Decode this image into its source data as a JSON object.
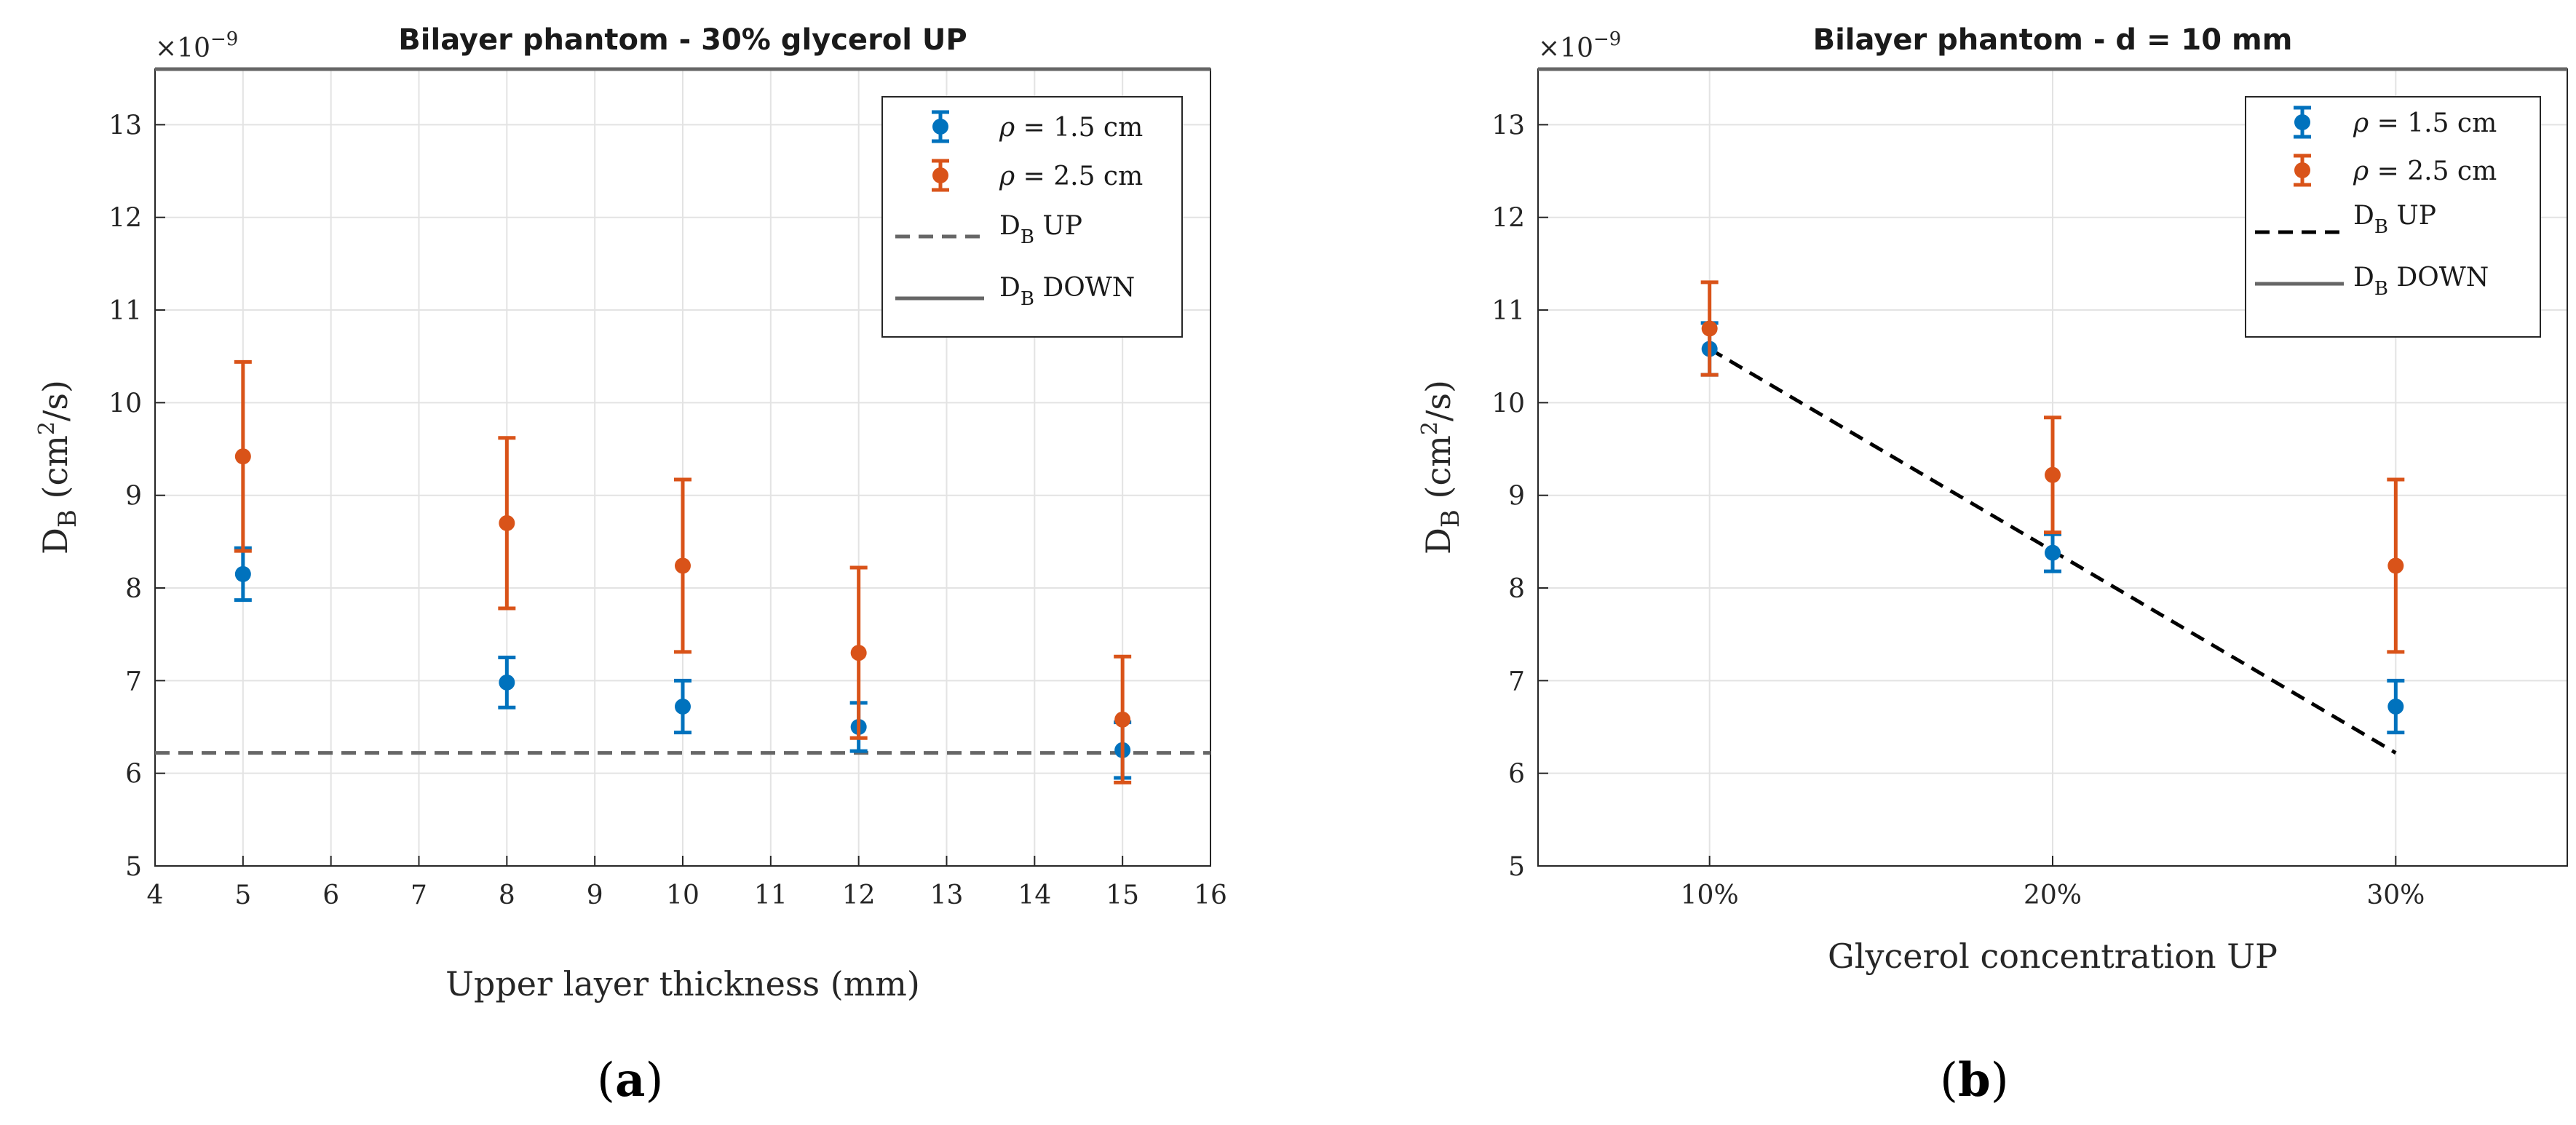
{
  "colors": {
    "series1": "#0072BD",
    "series2": "#D95319",
    "line": "#666666",
    "dashed_b": "#000000",
    "grid": "#e3e3e3",
    "axis": "#262626"
  },
  "chart_data": [
    {
      "type": "scatter",
      "panel_label": "a",
      "title": "Bilayer phantom - 30% glycerol UP",
      "exponent_label": "×10",
      "exponent_power": "−9",
      "xlabel": "Upper layer thickness (mm)",
      "ylabel_main": "D",
      "ylabel_sub": "B",
      "ylabel_rest1": " (cm",
      "ylabel_sup": "2",
      "ylabel_rest2": "/s)",
      "xlim": [
        4,
        16
      ],
      "ylim": [
        5,
        13.6
      ],
      "xticks": [
        4,
        5,
        6,
        7,
        8,
        9,
        10,
        11,
        12,
        13,
        14,
        15,
        16
      ],
      "yticks": [
        5,
        6,
        7,
        8,
        9,
        10,
        11,
        12,
        13
      ],
      "series": [
        {
          "name": "ρ = 1.5 cm",
          "x": [
            5,
            8,
            10,
            12,
            15
          ],
          "y": [
            8.15,
            6.98,
            6.72,
            6.5,
            6.25
          ],
          "err": [
            0.28,
            0.27,
            0.28,
            0.26,
            0.3
          ]
        },
        {
          "name": "ρ = 2.5 cm",
          "x": [
            5,
            8,
            10,
            12,
            15
          ],
          "y": [
            9.42,
            8.7,
            8.24,
            7.3,
            6.58
          ],
          "err": [
            1.02,
            0.92,
            0.93,
            0.92,
            0.68
          ]
        }
      ],
      "lines": [
        {
          "name": "D_B UP",
          "style": "dashed",
          "x": [
            4,
            16
          ],
          "y": [
            6.22,
            6.22
          ]
        },
        {
          "name": "D_B DOWN",
          "style": "solid",
          "x": [
            4,
            16
          ],
          "y": [
            13.6,
            13.6
          ]
        }
      ],
      "legend": [
        {
          "sym": "ρ",
          "rest": " = 1.5 cm"
        },
        {
          "sym": "ρ",
          "rest": " = 2.5 cm"
        },
        {
          "main": "D",
          "sub": "B",
          "rest": " UP"
        },
        {
          "main": "D",
          "sub": "B",
          "rest": " DOWN"
        }
      ]
    },
    {
      "type": "scatter",
      "panel_label": "b",
      "title": "Bilayer phantom - d = 10 mm",
      "exponent_label": "×10",
      "exponent_power": "−9",
      "xlabel": "Glycerol concentration UP",
      "ylabel_main": "D",
      "ylabel_sub": "B",
      "ylabel_rest1": " (cm",
      "ylabel_sup": "2",
      "ylabel_rest2": "/s)",
      "xlim": [
        0.5,
        3.5
      ],
      "ylim": [
        5,
        13.6
      ],
      "categories": [
        "10%",
        "20%",
        "30%"
      ],
      "xticks": [
        1,
        2,
        3
      ],
      "yticks": [
        5,
        6,
        7,
        8,
        9,
        10,
        11,
        12,
        13
      ],
      "series": [
        {
          "name": "ρ = 1.5 cm",
          "x": [
            1,
            2,
            3
          ],
          "y": [
            10.58,
            8.38,
            6.72
          ],
          "err": [
            0.28,
            0.2,
            0.28
          ]
        },
        {
          "name": "ρ = 2.5 cm",
          "x": [
            1,
            2,
            3
          ],
          "y": [
            10.8,
            9.22,
            8.24
          ],
          "err": [
            0.5,
            0.62,
            0.93
          ]
        }
      ],
      "lines": [
        {
          "name": "D_B UP",
          "style": "dashed",
          "x": [
            1,
            3
          ],
          "y": [
            10.58,
            6.22
          ]
        },
        {
          "name": "D_B DOWN",
          "style": "solid",
          "x": [
            0.5,
            3.5
          ],
          "y": [
            13.6,
            13.6
          ]
        }
      ],
      "legend": [
        {
          "sym": "ρ",
          "rest": " = 1.5 cm"
        },
        {
          "sym": "ρ",
          "rest": " = 2.5 cm"
        },
        {
          "main": "D",
          "sub": "B",
          "rest": " UP"
        },
        {
          "main": "D",
          "sub": "B",
          "rest": " DOWN"
        }
      ]
    }
  ]
}
